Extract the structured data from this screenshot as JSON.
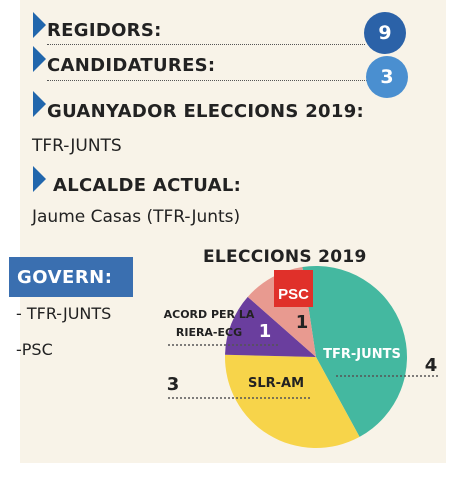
{
  "info": {
    "regidors_label": "REGIDORS:",
    "regidors_count": "9",
    "candidatures_label": "CANDIDATURES:",
    "candidatures_count": "3",
    "winner_label": "GUANYADOR ELECCIONS 2019:",
    "winner_value": "TFR-JUNTS",
    "mayor_label": "ALCALDE ACTUAL:",
    "mayor_value": "Jaume Casas (TFR-Junts)"
  },
  "govern": {
    "label": "GOVERN:",
    "items": [
      "- TFR-JUNTS",
      "-PSC"
    ]
  },
  "colors": {
    "accent_blue": "#2166ac",
    "badge_dark": "#2b62a8",
    "badge_light": "#4a8fd0",
    "panel": "#f8f3e8"
  },
  "chart_data": {
    "type": "pie",
    "title": "ELECCIONS 2019",
    "slices": [
      {
        "name": "TFR-JUNTS",
        "value": 4,
        "color": "#44b8a0"
      },
      {
        "name": "SLR-AM",
        "value": 3,
        "color": "#f7d44a"
      },
      {
        "name": "ACORD PER LA RIERA-ECG",
        "value": 1,
        "color": "#6a3e9e"
      },
      {
        "name": "PSC",
        "value": 1,
        "color": "#e89a90"
      }
    ],
    "slice_labels": {
      "tfr": "TFR-JUNTS",
      "slr": "SLR-AM",
      "acord_line1": "ACORD PER LA",
      "acord_line2": "RIERA-ECG",
      "psc_logo": "PSC"
    },
    "value_labels": {
      "tfr": "4",
      "slr": "3",
      "acord": "1",
      "psc": "1"
    }
  }
}
